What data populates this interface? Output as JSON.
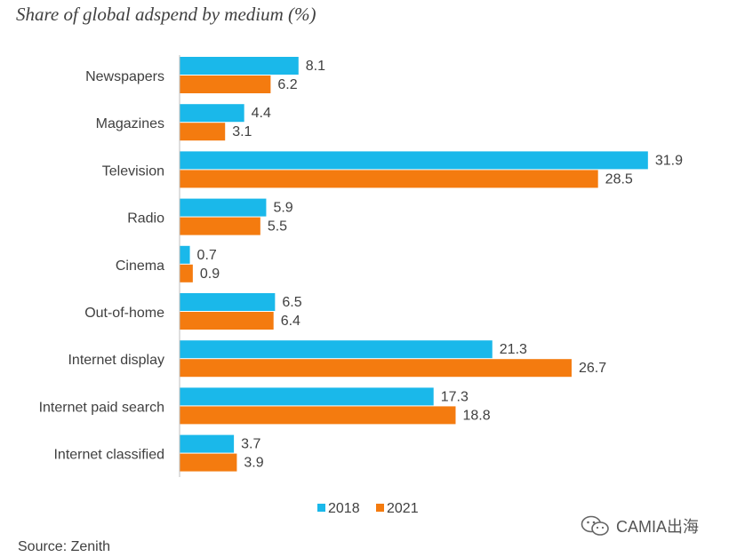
{
  "chart_data": {
    "type": "bar",
    "orientation": "horizontal",
    "title": "Share of global adspend by medium (%)",
    "categories": [
      "Newspapers",
      "Magazines",
      "Television",
      "Radio",
      "Cinema",
      "Out-of-home",
      "Internet display",
      "Internet paid search",
      "Internet classified"
    ],
    "series": [
      {
        "name": "2018",
        "color": "#1AB8EA",
        "values": [
          8.1,
          4.4,
          31.9,
          5.9,
          0.7,
          6.5,
          21.3,
          17.3,
          3.7
        ]
      },
      {
        "name": "2021",
        "color": "#F47B0F",
        "values": [
          6.2,
          3.1,
          28.5,
          5.5,
          0.9,
          6.4,
          26.7,
          18.8,
          3.9
        ]
      }
    ],
    "xlim": [
      0,
      33
    ],
    "legend_position": "bottom-center",
    "grid": false,
    "xlabel": "",
    "ylabel": ""
  },
  "footer": {
    "source": "Source: Zenith"
  },
  "watermark": {
    "icon": "wechat-icon",
    "text": "CAMIA出海"
  }
}
